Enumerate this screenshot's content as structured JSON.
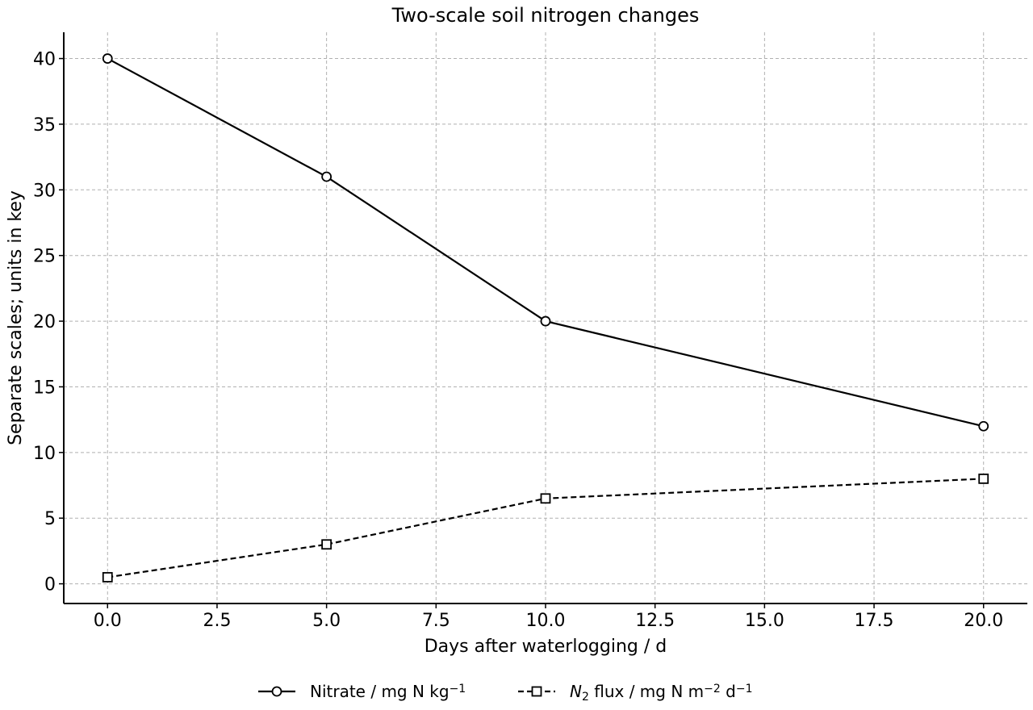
{
  "chart_data": {
    "type": "line",
    "title": "Two-scale soil nitrogen changes",
    "xlabel": "Days after waterlogging / d",
    "ylabel": "Separate scales; units in key",
    "xlim": [
      -1,
      21
    ],
    "ylim": [
      -1.5,
      42
    ],
    "x_ticks": [
      0,
      2.5,
      5,
      7.5,
      10,
      12.5,
      15,
      17.5,
      20
    ],
    "x_tick_labels": [
      "0.0",
      "2.5",
      "5.0",
      "7.5",
      "10.0",
      "12.5",
      "15.0",
      "17.5",
      "20.0"
    ],
    "y_ticks": [
      0,
      5,
      10,
      15,
      20,
      25,
      30,
      35,
      40
    ],
    "y_tick_labels": [
      "0",
      "5",
      "10",
      "15",
      "20",
      "25",
      "30",
      "35",
      "40"
    ],
    "grid": true,
    "legend_position": "bottom-center",
    "series": [
      {
        "name": "Nitrate / mg N kg−1",
        "legend_parts": [
          {
            "text": "Nitrate / mg N kg",
            "kind": "normal"
          },
          {
            "text": "−1",
            "kind": "sup"
          }
        ],
        "x": [
          0,
          5,
          10,
          20
        ],
        "y": [
          40,
          31,
          20,
          12
        ],
        "marker": "circle",
        "line_style": "solid",
        "color": "#000000"
      },
      {
        "name": "N2 flux / mg N m−2 d−1",
        "legend_parts": [
          {
            "text": "N",
            "kind": "italic"
          },
          {
            "text": "2",
            "kind": "sub"
          },
          {
            "text": " flux / mg N m",
            "kind": "normal"
          },
          {
            "text": "−2",
            "kind": "sup"
          },
          {
            "text": " d",
            "kind": "normal"
          },
          {
            "text": "−1",
            "kind": "sup"
          }
        ],
        "x": [
          0,
          5,
          10,
          20
        ],
        "y": [
          0.5,
          3,
          6.5,
          8
        ],
        "marker": "square",
        "line_style": "dashed",
        "color": "#000000"
      }
    ]
  }
}
